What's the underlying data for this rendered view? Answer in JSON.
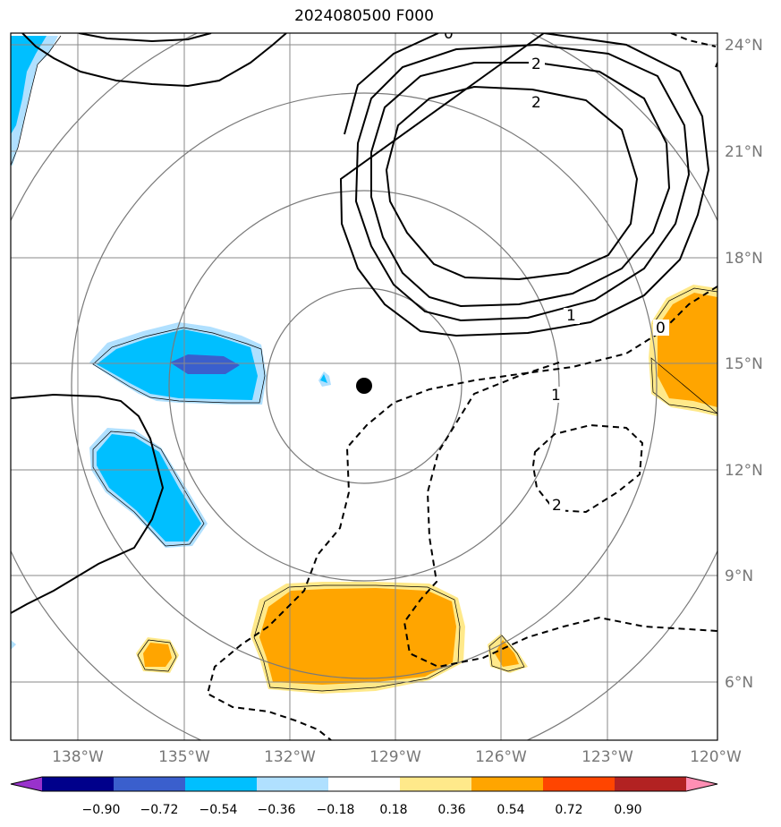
{
  "title": "2024080500 F000",
  "map": {
    "lon_labels": [
      "138°W",
      "135°W",
      "132°W",
      "129°W",
      "126°W",
      "123°W",
      "120°W"
    ],
    "lat_labels": [
      "24°N",
      "21°N",
      "18°N",
      "15°N",
      "12°N",
      "9°N",
      "6°N"
    ],
    "storm_center": {
      "lon": "130°W",
      "lat": "14.3°N"
    },
    "range_ring_count": 4,
    "contour_labels": [
      "0",
      "2",
      "2",
      "1",
      "0",
      "1",
      "2"
    ]
  },
  "colorbar": {
    "tick_labels": [
      "−0.90",
      "−0.72",
      "−0.54",
      "−0.36",
      "−0.18",
      "0.18",
      "0.36",
      "0.54",
      "0.72",
      "0.90"
    ],
    "colors": [
      "#9932cc",
      "#00008b",
      "#3a5fcd",
      "#00bfff",
      "#b0e0ff",
      "#ffffff",
      "#ffe98a",
      "#ffa500",
      "#ff4500",
      "#b22222",
      "#ff8fb4"
    ]
  }
}
